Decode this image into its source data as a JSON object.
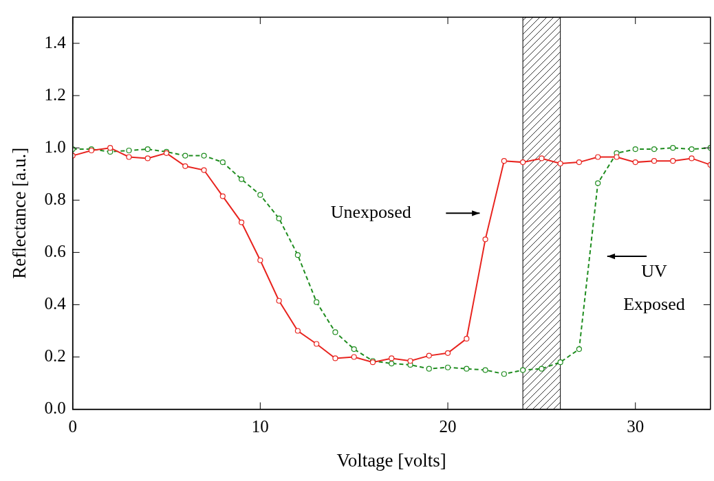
{
  "chart_data": {
    "type": "line",
    "x_label": "Voltage [volts]",
    "y_label": "Reflectance [a.u.]",
    "x": [
      0,
      1,
      2,
      3,
      4,
      5,
      6,
      7,
      8,
      9,
      10,
      11,
      12,
      13,
      14,
      15,
      16,
      17,
      18,
      19,
      20,
      21,
      22,
      23,
      24,
      25,
      26,
      27,
      28,
      29,
      30,
      31,
      32,
      33,
      34
    ],
    "series": [
      {
        "color": "#e8231e",
        "line_style": "solid",
        "marker": "open_circle",
        "values": [
          0.97,
          0.99,
          1.0,
          0.965,
          0.96,
          0.98,
          0.93,
          0.915,
          0.815,
          0.715,
          0.57,
          0.415,
          0.3,
          0.25,
          0.195,
          0.2,
          0.18,
          0.195,
          0.185,
          0.205,
          0.215,
          0.27,
          0.65,
          0.95,
          0.945,
          0.96,
          0.94,
          0.945,
          0.965,
          0.965,
          0.945,
          0.95,
          0.95,
          0.96,
          0.935
        ]
      },
      {
        "color": "#1e8c1e",
        "line_style": "dashed",
        "marker": "open_circle",
        "values": [
          0.995,
          0.995,
          0.985,
          0.99,
          0.995,
          0.985,
          0.97,
          0.97,
          0.945,
          0.88,
          0.82,
          0.73,
          0.59,
          0.41,
          0.295,
          0.23,
          0.185,
          0.175,
          0.17,
          0.155,
          0.16,
          0.155,
          0.15,
          0.135,
          0.15,
          0.155,
          0.18,
          0.23,
          0.865,
          0.98,
          0.995,
          0.995,
          1.0,
          0.995,
          1.0
        ]
      }
    ],
    "xlim": [
      0,
      34
    ],
    "xticks": [
      0,
      10,
      20,
      30
    ],
    "ylim": [
      0,
      1.5
    ],
    "yticks": [
      {
        "value": 0,
        "label": "0.0"
      },
      0.2,
      0.4,
      0.6,
      0.8,
      {
        "value": 1,
        "label": "1.0"
      },
      1.2,
      1.4
    ],
    "grid": false,
    "shaded_band": [
      24,
      26
    ],
    "annotations": [
      {
        "text": [
          "Unexposed"
        ],
        "text_xy": [
          15.9,
          0.75
        ],
        "arrow_from": [
          19.9,
          0.75
        ],
        "arrow_to": [
          21.7,
          0.75
        ]
      },
      {
        "text": [
          "UV",
          "Exposed"
        ],
        "text_xy": [
          31.0,
          0.46
        ],
        "arrow_from": [
          30.6,
          0.585
        ],
        "arrow_to": [
          28.5,
          0.585
        ]
      }
    ]
  }
}
